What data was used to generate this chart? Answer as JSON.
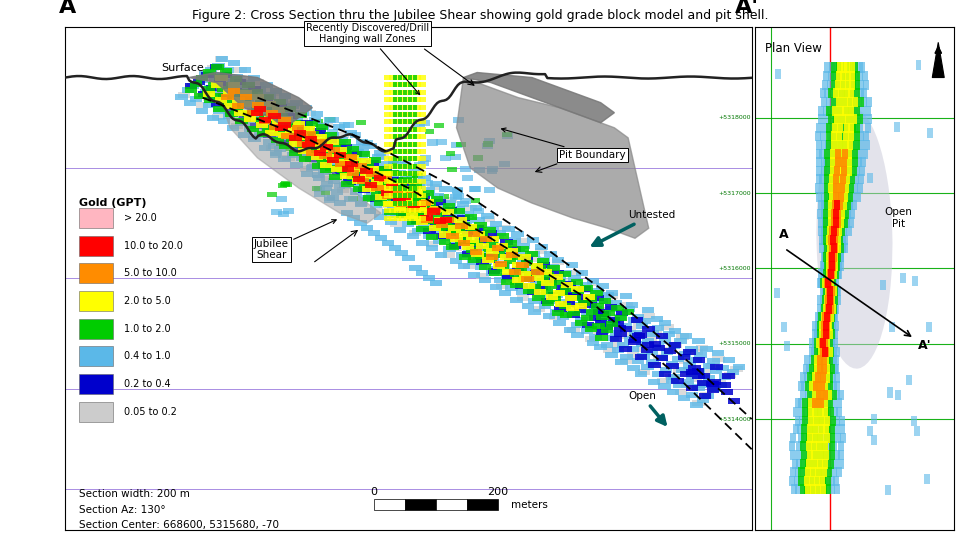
{
  "title": "Figure 2: Cross Section thru the Jubilee Shear showing gold grade block model and pit shell.",
  "title_fontsize": 9,
  "fig_bg": "#ffffff",
  "main_label_A": "A",
  "main_label_Aprime": "A'",
  "plan_label": "Plan View",
  "surface_label": "Surface",
  "legend_title": "Gold (GPT)",
  "legend_items": [
    {
      "label": "> 20.0",
      "color": "#ffb6c1"
    },
    {
      "label": "10.0 to 20.0",
      "color": "#ff0000"
    },
    {
      "label": "5.0 to 10.0",
      "color": "#ff8c00"
    },
    {
      "label": "2.0 to 5.0",
      "color": "#ffff00"
    },
    {
      "label": "1.0 to 2.0",
      "color": "#00cc00"
    },
    {
      "label": "0.4 to 1.0",
      "color": "#5bb8e8"
    },
    {
      "label": "0.2 to 0.4",
      "color": "#0000cc"
    },
    {
      "label": "0.05 to 0.2",
      "color": "#cccccc"
    }
  ],
  "section_info": [
    "Section width: 200 m",
    "Section Az: 130°",
    "Section Center: 668600, 5315680, -70"
  ],
  "scalebar_0": "0",
  "scalebar_200": "200",
  "scalebar_label": "meters",
  "open_pit_label": "Open\nPit",
  "plan_A_label": "A",
  "plan_Aprime_label": "A'",
  "grid_color": "#9370db",
  "surface_color": "#555555",
  "pit_gray": "#888888",
  "pit_gray_alpha": 0.55
}
